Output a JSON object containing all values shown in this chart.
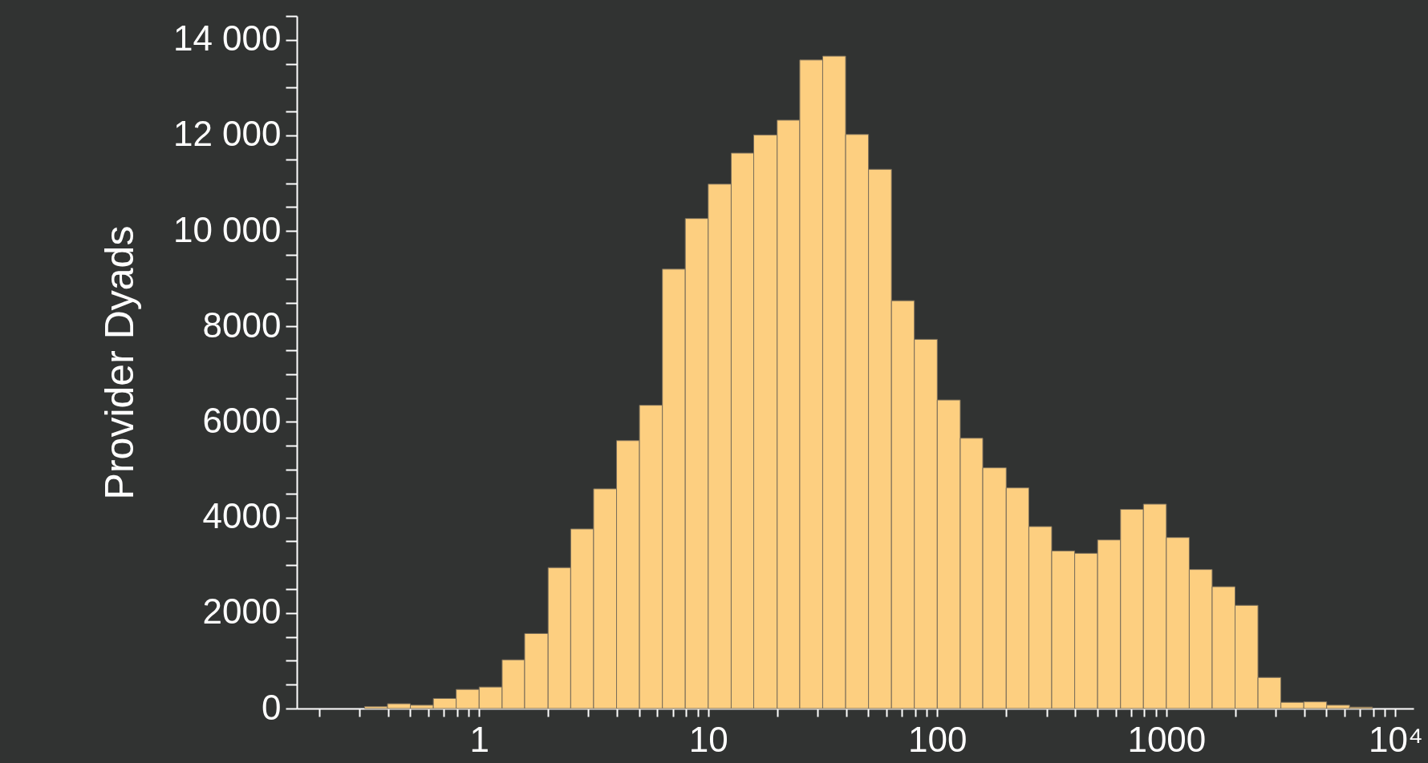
{
  "chart_data": {
    "type": "histogram",
    "ylabel": "Provider Dyads",
    "color": "#fdcf80",
    "log": "x",
    "grid": false,
    "bins": [
      0.316,
      0.398,
      0.501,
      0.631,
      0.794,
      1,
      1.26,
      1.58,
      2,
      2.51,
      3.16,
      3.98,
      5.01,
      6.31,
      7.94,
      10,
      12.6,
      15.8,
      20,
      25.1,
      31.6,
      39.8,
      50.1,
      63.1,
      79.4,
      100,
      126,
      158,
      200,
      251,
      316,
      398,
      501,
      631,
      794,
      1000,
      1259,
      1585,
      1995,
      2512,
      3162,
      3981,
      5012,
      6310,
      7943
    ],
    "values": [
      40,
      100,
      70,
      210,
      400,
      450,
      1020,
      1570,
      2950,
      3760,
      4600,
      5610,
      6350,
      9200,
      10260,
      10980,
      11630,
      12010,
      12320,
      13580,
      13660,
      12020,
      11290,
      8540,
      7730,
      6460,
      5660,
      5040,
      4620,
      3810,
      3300,
      3250,
      3530,
      4170,
      4280,
      3580,
      2910,
      2550,
      2160,
      650,
      130,
      140,
      70,
      30
    ],
    "xlim": [
      0.16,
      12000
    ],
    "xticks": [
      {
        "value": 0.2,
        "label": null
      },
      {
        "value": 0.3,
        "label": null
      },
      {
        "value": 0.4,
        "label": null
      },
      {
        "value": 0.5,
        "label": null
      },
      {
        "value": 0.6,
        "label": null
      },
      {
        "value": 0.7,
        "label": null
      },
      {
        "value": 0.8,
        "label": null
      },
      {
        "value": 0.9,
        "label": null
      },
      1,
      {
        "value": 2,
        "label": null
      },
      {
        "value": 3,
        "label": null
      },
      {
        "value": 4,
        "label": null
      },
      {
        "value": 5,
        "label": null
      },
      {
        "value": 6,
        "label": null
      },
      {
        "value": 7,
        "label": null
      },
      {
        "value": 8,
        "label": null
      },
      {
        "value": 9,
        "label": null
      },
      10,
      {
        "value": 20,
        "label": null
      },
      {
        "value": 30,
        "label": null
      },
      {
        "value": 40,
        "label": null
      },
      {
        "value": 50,
        "label": null
      },
      {
        "value": 60,
        "label": null
      },
      {
        "value": 70,
        "label": null
      },
      {
        "value": 80,
        "label": null
      },
      {
        "value": 90,
        "label": null
      },
      100,
      {
        "value": 200,
        "label": null
      },
      {
        "value": 300,
        "label": null
      },
      {
        "value": 400,
        "label": null
      },
      {
        "value": 500,
        "label": null
      },
      {
        "value": 600,
        "label": null
      },
      {
        "value": 700,
        "label": null
      },
      {
        "value": 800,
        "label": null
      },
      {
        "value": 900,
        "label": null
      },
      1000,
      {
        "value": 2000,
        "label": null
      },
      {
        "value": 3000,
        "label": null
      },
      {
        "value": 4000,
        "label": null
      },
      {
        "value": 5000,
        "label": null
      },
      {
        "value": 6000,
        "label": null
      },
      {
        "value": 7000,
        "label": null
      },
      {
        "value": 8000,
        "label": null
      },
      {
        "value": 9000,
        "label": null
      },
      {
        "value": 10000,
        "label": "10⁴"
      }
    ],
    "ylim": [
      0,
      14500
    ],
    "yticks": [
      0,
      {
        "value": 500,
        "label": null
      },
      {
        "value": 1000,
        "label": null
      },
      {
        "value": 1500,
        "label": null
      },
      2000,
      {
        "value": 2500,
        "label": null
      },
      {
        "value": 3000,
        "label": null
      },
      {
        "value": 3500,
        "label": null
      },
      4000,
      {
        "value": 4500,
        "label": null
      },
      {
        "value": 5000,
        "label": null
      },
      {
        "value": 5500,
        "label": null
      },
      6000,
      {
        "value": 6500,
        "label": null
      },
      {
        "value": 7000,
        "label": null
      },
      {
        "value": 7500,
        "label": null
      },
      8000,
      {
        "value": 8500,
        "label": null
      },
      {
        "value": 9000,
        "label": null
      },
      {
        "value": 9500,
        "label": null
      },
      {
        "value": 10000,
        "label": "10 000"
      },
      {
        "value": 10500,
        "label": null
      },
      {
        "value": 11000,
        "label": null
      },
      {
        "value": 11500,
        "label": null
      },
      {
        "value": 12000,
        "label": "12 000"
      },
      {
        "value": 12500,
        "label": null
      },
      {
        "value": 13000,
        "label": null
      },
      {
        "value": 13500,
        "label": null
      },
      {
        "value": 14000,
        "label": "14 000"
      },
      {
        "value": 14500,
        "label": null
      }
    ]
  }
}
